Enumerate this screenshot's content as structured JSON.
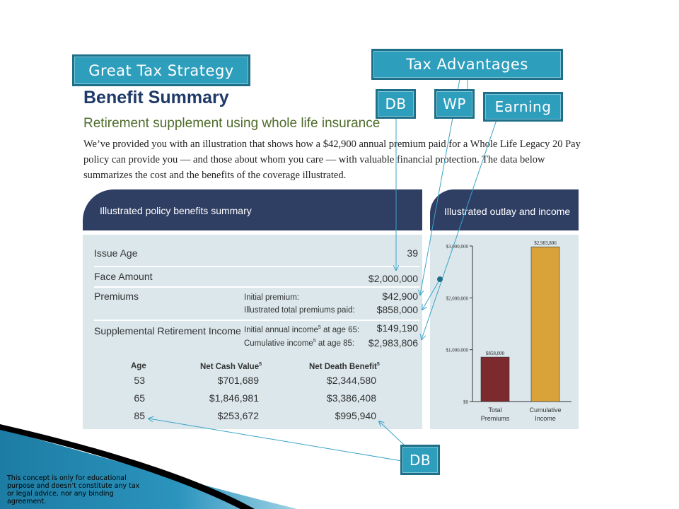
{
  "callouts": {
    "great_tax_strategy": "Great Tax Strategy",
    "tax_advantages": "Tax Advantages",
    "db_top": "DB",
    "wp": "WP",
    "earning": "Earning",
    "db_bottom": "DB"
  },
  "heading": {
    "title": "Benefit Summary",
    "subtitle": "Retirement supplement using whole life insurance",
    "intro": "We’ve provided you with an illustration that shows how a $42,900 annual premium paid for a Whole Life Legacy 20 Pay policy can provide you — and those about whom you care — with valuable financial protection.  The data below summarizes the cost and the benefits of the coverage illustrated."
  },
  "summary_panel": {
    "header": "Illustrated policy benefits summary",
    "issue_age_label": "Issue Age",
    "issue_age_value": "39",
    "face_amount_label": "Face Amount",
    "face_amount_value": "$2,000,000",
    "premiums_label": "Premiums",
    "initial_premium_label": "Initial premium:",
    "initial_premium_value": "$42,900",
    "total_premiums_label": "Illustrated total premiums paid:",
    "total_premiums_value": "$858,000",
    "sri_label": "Supplemental Retirement Income",
    "initial_income_label": "Initial annual income",
    "initial_income_sup": "5",
    "initial_income_suffix": " at age 65:",
    "initial_income_value": "$149,190",
    "cumulative_income_label": "Cumulative income",
    "cumulative_income_sup": "5",
    "cumulative_income_suffix": " at age 85:",
    "cumulative_income_value": "$2,983,806",
    "table": {
      "headers": {
        "age": "Age",
        "ncv": "Net Cash Value",
        "ncv_sup": "5",
        "ndb": "Net Death Benefit",
        "ndb_sup": "5"
      },
      "rows": [
        {
          "age": "53",
          "ncv": "$701,689",
          "ndb": "$2,344,580"
        },
        {
          "age": "65",
          "ncv": "$1,846,981",
          "ndb": "$3,386,408"
        },
        {
          "age": "85",
          "ncv": "$253,672",
          "ndb": "$995,940"
        }
      ]
    }
  },
  "outlay_panel": {
    "header": "Illustrated outlay and income"
  },
  "chart_data": {
    "type": "bar",
    "categories": [
      "Total Premiums",
      "Cumulative Income"
    ],
    "category_lines": [
      [
        "Total",
        "Premiums"
      ],
      [
        "Cumulative",
        "Income"
      ]
    ],
    "values": [
      858000,
      2983806
    ],
    "data_labels": [
      "$858,000",
      "$2,983,806"
    ],
    "ylim": [
      0,
      3000000
    ],
    "yticks": [
      0,
      1000000,
      2000000,
      3000000
    ],
    "ytick_labels": [
      "$0",
      "$1,000,000",
      "$2,000,000",
      "$3,000,000"
    ],
    "colors": [
      "#7d2a2e",
      "#d9a33a"
    ],
    "title": "",
    "xlabel": "",
    "ylabel": "",
    "grid": false
  },
  "disclaimer": "This concept is only for educational purpose and doesn’t constitute any tax or legal advice, nor any binding agreement.",
  "colors": {
    "callout_fill": "#2e9ebd",
    "panel_header": "#2f3e63",
    "panel_body": "#dbe7eb",
    "title": "#1f3a68",
    "subtitle": "#4f6c2c",
    "arrow": "#3aa3c8"
  }
}
